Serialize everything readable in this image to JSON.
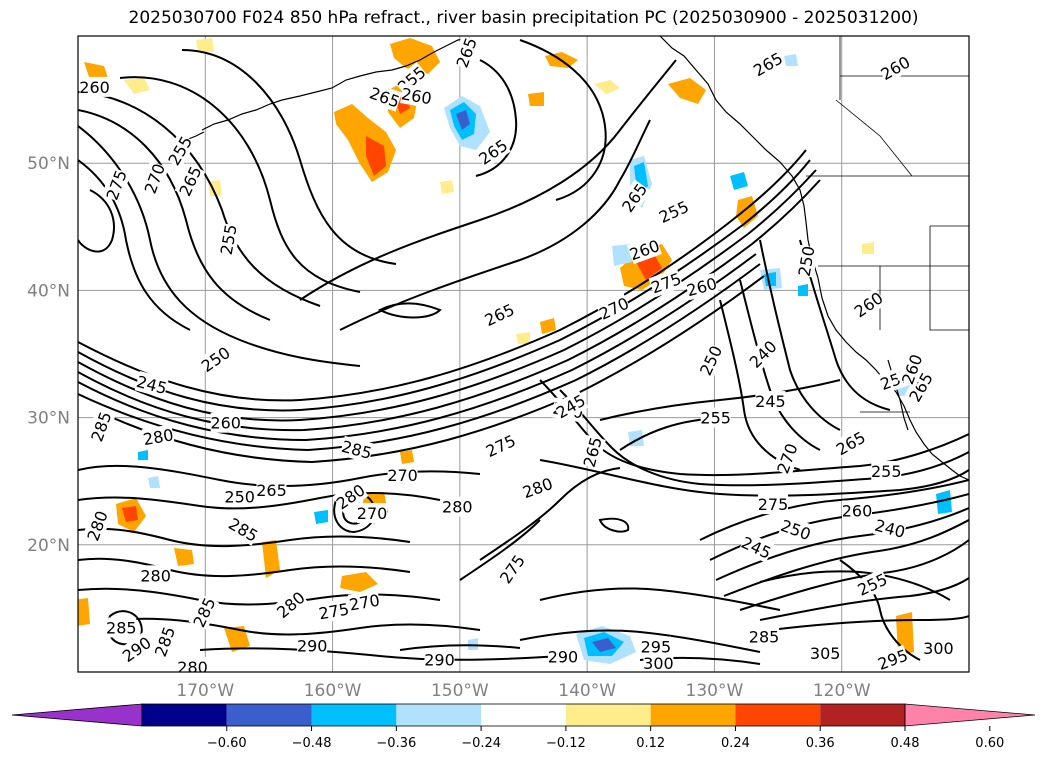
{
  "title": "2025030700 F024 850 hPa refract., river basin precipitation PC (2025030900 - 2025031200)",
  "map": {
    "lon_range": [
      -180,
      -110
    ],
    "lat_range": [
      10,
      60
    ],
    "lat_ticks": [
      {
        "value": 50,
        "label": "50°N"
      },
      {
        "value": 40,
        "label": "40°N"
      },
      {
        "value": 30,
        "label": "30°N"
      },
      {
        "value": 20,
        "label": "20°N"
      }
    ],
    "lon_ticks": [
      {
        "value": -170,
        "label": "170°W"
      },
      {
        "value": -160,
        "label": "160°W"
      },
      {
        "value": -150,
        "label": "150°W"
      },
      {
        "value": -140,
        "label": "140°W"
      },
      {
        "value": -130,
        "label": "130°W"
      },
      {
        "value": -120,
        "label": "120°W"
      }
    ],
    "grid": true
  },
  "contour_labels": [
    {
      "text": "260",
      "lon": -178.7,
      "lat": 56.0,
      "rot": 0
    },
    {
      "text": "275",
      "lon": -177.0,
      "lat": 48.3,
      "rot": -70
    },
    {
      "text": "270",
      "lon": -174.0,
      "lat": 48.8,
      "rot": -70
    },
    {
      "text": "255",
      "lon": -172.0,
      "lat": 51.0,
      "rot": -60
    },
    {
      "text": "265",
      "lon": -171.2,
      "lat": 48.6,
      "rot": -65
    },
    {
      "text": "255",
      "lon": -168.2,
      "lat": 44.0,
      "rot": -80
    },
    {
      "text": "265",
      "lon": -155.9,
      "lat": 55.2,
      "rot": 20
    },
    {
      "text": "255",
      "lon": -153.8,
      "lat": 56.6,
      "rot": -40
    },
    {
      "text": "260",
      "lon": -153.4,
      "lat": 55.3,
      "rot": 10
    },
    {
      "text": "265",
      "lon": -149.5,
      "lat": 58.7,
      "rot": -70
    },
    {
      "text": "265",
      "lon": -147.4,
      "lat": 50.9,
      "rot": -35
    },
    {
      "text": "265",
      "lon": -125.8,
      "lat": 57.8,
      "rot": -30
    },
    {
      "text": "260",
      "lon": -115.8,
      "lat": 57.5,
      "rot": -30
    },
    {
      "text": "265",
      "lon": -136.3,
      "lat": 47.3,
      "rot": -55
    },
    {
      "text": "255",
      "lon": -133.2,
      "lat": 46.2,
      "rot": -25
    },
    {
      "text": "260",
      "lon": -135.5,
      "lat": 43.2,
      "rot": -20
    },
    {
      "text": "275",
      "lon": -133.8,
      "lat": 40.6,
      "rot": -20
    },
    {
      "text": "270",
      "lon": -137.9,
      "lat": 38.6,
      "rot": -25
    },
    {
      "text": "260",
      "lon": -131.0,
      "lat": 40.3,
      "rot": -15
    },
    {
      "text": "265",
      "lon": -146.9,
      "lat": 38.1,
      "rot": -25
    },
    {
      "text": "250",
      "lon": -169.2,
      "lat": 34.6,
      "rot": -35
    },
    {
      "text": "245",
      "lon": -174.2,
      "lat": 32.6,
      "rot": 15
    },
    {
      "text": "260",
      "lon": -168.4,
      "lat": 29.6,
      "rot": 0
    },
    {
      "text": "280",
      "lon": -141.5,
      "lat": 30.6,
      "rot": 10
    },
    {
      "text": "285",
      "lon": -178.2,
      "lat": 29.3,
      "rot": -70
    },
    {
      "text": "280",
      "lon": -173.7,
      "lat": 28.5,
      "rot": -10
    },
    {
      "text": "285",
      "lon": -158.1,
      "lat": 27.5,
      "rot": 15
    },
    {
      "text": "275",
      "lon": -146.8,
      "lat": 27.8,
      "rot": -25
    },
    {
      "text": "270",
      "lon": -154.5,
      "lat": 25.5,
      "rot": 0
    },
    {
      "text": "250",
      "lon": -130.3,
      "lat": 34.5,
      "rot": -65
    },
    {
      "text": "240",
      "lon": -126.2,
      "lat": 35.0,
      "rot": -45
    },
    {
      "text": "250",
      "lon": -122.8,
      "lat": 42.3,
      "rot": -80
    },
    {
      "text": "260",
      "lon": -117.9,
      "lat": 38.9,
      "rot": -35
    },
    {
      "text": "245",
      "lon": -141.3,
      "lat": 30.9,
      "rot": -30
    },
    {
      "text": "255",
      "lon": -129.9,
      "lat": 30.0,
      "rot": 0
    },
    {
      "text": "245",
      "lon": -125.6,
      "lat": 31.3,
      "rot": 0
    },
    {
      "text": "265",
      "lon": -139.6,
      "lat": 27.3,
      "rot": -75
    },
    {
      "text": "265",
      "lon": -119.3,
      "lat": 28.0,
      "rot": -30
    },
    {
      "text": "255",
      "lon": -116.5,
      "lat": 25.8,
      "rot": 0
    },
    {
      "text": "270",
      "lon": -124.3,
      "lat": 26.8,
      "rot": -70
    },
    {
      "text": "275",
      "lon": -125.4,
      "lat": 23.2,
      "rot": 0
    },
    {
      "text": "260",
      "lon": -118.8,
      "lat": 22.7,
      "rot": 0
    },
    {
      "text": "240",
      "lon": -116.2,
      "lat": 21.3,
      "rot": 15
    },
    {
      "text": "250",
      "lon": -123.6,
      "lat": 21.2,
      "rot": 20
    },
    {
      "text": "245",
      "lon": -126.7,
      "lat": 19.8,
      "rot": 25
    },
    {
      "text": "255",
      "lon": -117.6,
      "lat": 16.9,
      "rot": -25
    },
    {
      "text": "285",
      "lon": -126.1,
      "lat": 12.8,
      "rot": 0
    },
    {
      "text": "290",
      "lon": -161.6,
      "lat": 12.1,
      "rot": 0
    },
    {
      "text": "290",
      "lon": -151.6,
      "lat": 11.0,
      "rot": 0
    },
    {
      "text": "290",
      "lon": -141.9,
      "lat": 11.2,
      "rot": 0
    },
    {
      "text": "295",
      "lon": -134.6,
      "lat": 12.0,
      "rot": 0
    },
    {
      "text": "300",
      "lon": -134.4,
      "lat": 10.7,
      "rot": 0
    },
    {
      "text": "305",
      "lon": -121.3,
      "lat": 11.5,
      "rot": 0
    },
    {
      "text": "295",
      "lon": -116.0,
      "lat": 11.0,
      "rot": -20
    },
    {
      "text": "300",
      "lon": -112.4,
      "lat": 11.9,
      "rot": 0
    },
    {
      "text": "265",
      "lon": -164.8,
      "lat": 24.3,
      "rot": 0
    },
    {
      "text": "250",
      "lon": -167.3,
      "lat": 23.8,
      "rot": 0
    },
    {
      "text": "270",
      "lon": -156.9,
      "lat": 22.5,
      "rot": 0
    },
    {
      "text": "280",
      "lon": -158.6,
      "lat": 23.8,
      "rot": -35
    },
    {
      "text": "280",
      "lon": -150.2,
      "lat": 23.0,
      "rot": 0
    },
    {
      "text": "280",
      "lon": -143.9,
      "lat": 24.5,
      "rot": -20
    },
    {
      "text": "285",
      "lon": -167.0,
      "lat": 21.2,
      "rot": 30
    },
    {
      "text": "280",
      "lon": -178.5,
      "lat": 21.5,
      "rot": -70
    },
    {
      "text": "280",
      "lon": -173.9,
      "lat": 17.6,
      "rot": 0
    },
    {
      "text": "275",
      "lon": -145.9,
      "lat": 18.1,
      "rot": -55
    },
    {
      "text": "270",
      "lon": -157.5,
      "lat": 15.5,
      "rot": -10
    },
    {
      "text": "275",
      "lon": -159.9,
      "lat": 14.8,
      "rot": -10
    },
    {
      "text": "280",
      "lon": -163.3,
      "lat": 15.3,
      "rot": -40
    },
    {
      "text": "285",
      "lon": -170.1,
      "lat": 14.7,
      "rot": -65
    },
    {
      "text": "285",
      "lon": -176.6,
      "lat": 13.5,
      "rot": 0
    },
    {
      "text": "285",
      "lon": -173.2,
      "lat": 12.4,
      "rot": -70
    },
    {
      "text": "280",
      "lon": -171.0,
      "lat": 10.4,
      "rot": 0
    },
    {
      "text": "290",
      "lon": -175.4,
      "lat": 11.8,
      "rot": -35
    },
    {
      "text": "265",
      "lon": -113.8,
      "lat": 32.4,
      "rot": -60
    },
    {
      "text": "255",
      "lon": -115.8,
      "lat": 33.0,
      "rot": -20
    },
    {
      "text": "260",
      "lon": -114.5,
      "lat": 33.8,
      "rot": -70
    }
  ],
  "colorbar": {
    "colors": [
      "#9932cc",
      "#00008b",
      "#3a5fcd",
      "#00bfff",
      "#b0e2ff",
      "#ffffff",
      "#ffec8b",
      "#ffa500",
      "#ff4500",
      "#b22222",
      "#ff82ab"
    ],
    "ticks": [
      "−0.60",
      "−0.48",
      "−0.36",
      "−0.24",
      "−0.12",
      "0.12",
      "0.24",
      "0.36",
      "0.48",
      "0.60"
    ]
  },
  "precip_colors": {
    "pos_light": "#ffec8b",
    "pos_mid": "#ffa500",
    "pos_strong": "#ff4500",
    "neg_light": "#b0e2ff",
    "neg_mid": "#00bfff",
    "neg_strong": "#3a5fcd"
  }
}
